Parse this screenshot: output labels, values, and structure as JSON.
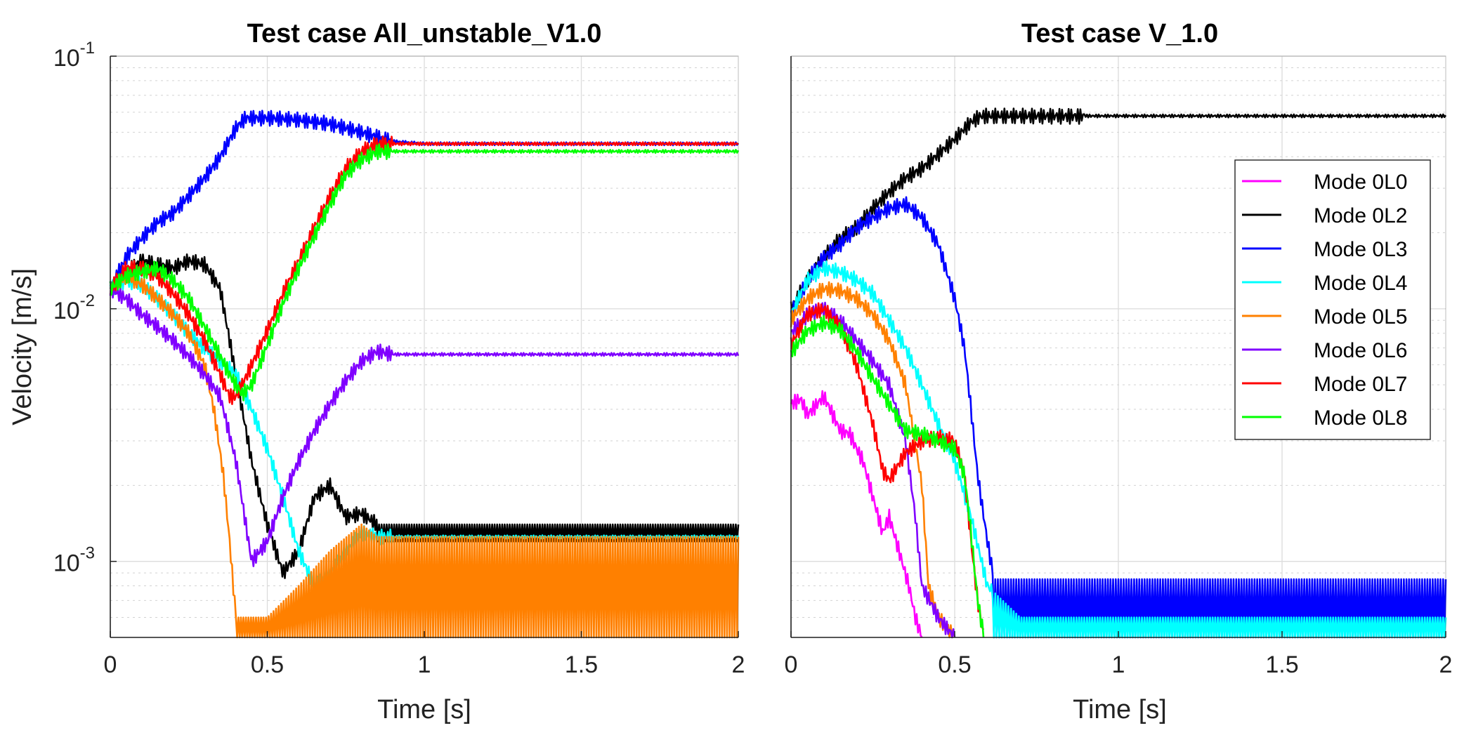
{
  "colors": {
    "Mode 0L0": "#ff00ff",
    "Mode 0L2": "#000000",
    "Mode 0L3": "#0000ff",
    "Mode 0L4": "#00ffff",
    "Mode 0L5": "#ff8000",
    "Mode 0L6": "#8000ff",
    "Mode 0L7": "#ff0000",
    "Mode 0L8": "#00ff00"
  },
  "chart_data": [
    {
      "type": "line",
      "title": "Test case All_unstable_V1.0",
      "xlabel": "Time [s]",
      "ylabel": "Velocity [m/s]",
      "xlim": [
        0,
        2
      ],
      "ylim": [
        0.0005,
        0.1
      ],
      "yscale": "log",
      "xticks": [
        "0",
        "0.5",
        "1",
        "1.5",
        "2"
      ],
      "yticks": [
        {
          "base": "10",
          "exp": "-3"
        },
        {
          "base": "10",
          "exp": "-2"
        },
        {
          "base": "10",
          "exp": "-1"
        }
      ],
      "grid": true,
      "legend": null,
      "series": [
        {
          "name": "Mode 0L2",
          "color": "#000000",
          "osc_after": 0.85,
          "osc_low": 0.0012,
          "x": [
            0,
            0.05,
            0.1,
            0.15,
            0.2,
            0.25,
            0.3,
            0.35,
            0.38,
            0.42,
            0.45,
            0.5,
            0.55,
            0.6,
            0.65,
            0.7,
            0.75,
            0.8,
            0.85,
            2.0
          ],
          "y": [
            0.012,
            0.014,
            0.0155,
            0.015,
            0.0145,
            0.0155,
            0.015,
            0.012,
            0.0075,
            0.004,
            0.0025,
            0.0014,
            0.0009,
            0.0011,
            0.0018,
            0.002,
            0.0015,
            0.00155,
            0.0014,
            0.0014
          ]
        },
        {
          "name": "Mode 0L3",
          "color": "#0000ff",
          "x": [
            0,
            0.05,
            0.1,
            0.15,
            0.2,
            0.25,
            0.3,
            0.35,
            0.4,
            0.43,
            0.5,
            0.6,
            0.7,
            0.8,
            0.9,
            1.0,
            2.0
          ],
          "y": [
            0.012,
            0.016,
            0.019,
            0.022,
            0.024,
            0.028,
            0.033,
            0.04,
            0.052,
            0.057,
            0.057,
            0.056,
            0.054,
            0.05,
            0.046,
            0.045,
            0.045
          ]
        },
        {
          "name": "Mode 0L4",
          "color": "#00ffff",
          "x": [
            0,
            0.05,
            0.1,
            0.15,
            0.2,
            0.25,
            0.3,
            0.35,
            0.4,
            0.45,
            0.5,
            0.55,
            0.6,
            0.65,
            0.7,
            0.75,
            0.8,
            0.85,
            2.0
          ],
          "y": [
            0.012,
            0.013,
            0.0125,
            0.011,
            0.0095,
            0.008,
            0.007,
            0.0062,
            0.0055,
            0.004,
            0.0028,
            0.0018,
            0.0011,
            0.0008,
            0.0009,
            0.0011,
            0.0013,
            0.00125,
            0.00125
          ]
        },
        {
          "name": "Mode 0L5",
          "color": "#ff8000",
          "osc_after": 0.4,
          "osc_low": 0.0005,
          "x": [
            0,
            0.05,
            0.1,
            0.15,
            0.2,
            0.25,
            0.3,
            0.33,
            0.36,
            0.38,
            0.4,
            0.5,
            0.6,
            0.7,
            0.8,
            0.85,
            2.0
          ],
          "y": [
            0.012,
            0.0135,
            0.0125,
            0.011,
            0.0095,
            0.008,
            0.006,
            0.004,
            0.0022,
            0.0012,
            0.0006,
            0.0006,
            0.0008,
            0.0011,
            0.0014,
            0.00125,
            0.00125
          ]
        },
        {
          "name": "Mode 0L6",
          "color": "#8000ff",
          "x": [
            0,
            0.05,
            0.1,
            0.15,
            0.2,
            0.25,
            0.3,
            0.35,
            0.4,
            0.45,
            0.5,
            0.55,
            0.6,
            0.65,
            0.7,
            0.75,
            0.8,
            0.85,
            0.9,
            2.0
          ],
          "y": [
            0.012,
            0.011,
            0.0095,
            0.0085,
            0.0075,
            0.0065,
            0.0055,
            0.0045,
            0.0025,
            0.001,
            0.0012,
            0.0018,
            0.0025,
            0.0033,
            0.0042,
            0.0052,
            0.0062,
            0.0068,
            0.0066,
            0.0066
          ]
        },
        {
          "name": "Mode 0L7",
          "color": "#ff0000",
          "x": [
            0,
            0.05,
            0.1,
            0.15,
            0.2,
            0.25,
            0.3,
            0.35,
            0.38,
            0.4,
            0.42,
            0.45,
            0.5,
            0.55,
            0.6,
            0.65,
            0.7,
            0.75,
            0.8,
            0.85,
            0.9,
            2.0
          ],
          "y": [
            0.012,
            0.0145,
            0.0145,
            0.0135,
            0.0115,
            0.0095,
            0.0075,
            0.0055,
            0.0045,
            0.0045,
            0.005,
            0.006,
            0.0082,
            0.0115,
            0.0155,
            0.021,
            0.028,
            0.036,
            0.042,
            0.045,
            0.045,
            0.045
          ]
        },
        {
          "name": "Mode 0L8",
          "color": "#00ff00",
          "x": [
            0,
            0.05,
            0.1,
            0.15,
            0.2,
            0.25,
            0.3,
            0.35,
            0.38,
            0.4,
            0.42,
            0.45,
            0.5,
            0.55,
            0.6,
            0.65,
            0.7,
            0.75,
            0.8,
            0.85,
            0.9,
            2.0
          ],
          "y": [
            0.012,
            0.0135,
            0.014,
            0.0145,
            0.013,
            0.011,
            0.0085,
            0.0065,
            0.0055,
            0.005,
            0.0046,
            0.005,
            0.0072,
            0.0105,
            0.0145,
            0.0195,
            0.026,
            0.034,
            0.039,
            0.042,
            0.042,
            0.042
          ]
        }
      ]
    },
    {
      "type": "line",
      "title": "Test case V_1.0",
      "xlabel": "Time [s]",
      "ylabel": "",
      "xlim": [
        0,
        2
      ],
      "ylim": [
        0.0005,
        0.1
      ],
      "yscale": "log",
      "xticks": [
        "0",
        "0.5",
        "1",
        "1.5",
        "2"
      ],
      "yticks": [],
      "grid": true,
      "legend": "upper-right",
      "series": [
        {
          "name": "Mode 0L0",
          "color": "#ff00ff",
          "x": [
            0,
            0.03,
            0.05,
            0.08,
            0.1,
            0.12,
            0.15,
            0.18,
            0.2,
            0.22,
            0.25,
            0.28,
            0.3,
            0.33,
            0.36,
            0.38,
            0.4
          ],
          "y": [
            0.0042,
            0.0044,
            0.0038,
            0.0042,
            0.0045,
            0.004,
            0.0033,
            0.0032,
            0.0028,
            0.0025,
            0.0018,
            0.0013,
            0.0015,
            0.0011,
            0.0008,
            0.0006,
            0.0005
          ]
        },
        {
          "name": "Mode 0L2",
          "color": "#000000",
          "x": [
            0,
            0.05,
            0.1,
            0.15,
            0.2,
            0.25,
            0.3,
            0.35,
            0.4,
            0.45,
            0.5,
            0.55,
            0.58,
            0.6,
            2.0
          ],
          "y": [
            0.01,
            0.013,
            0.016,
            0.019,
            0.021,
            0.025,
            0.029,
            0.033,
            0.036,
            0.041,
            0.047,
            0.055,
            0.058,
            0.058,
            0.058
          ]
        },
        {
          "name": "Mode 0L3",
          "color": "#0000ff",
          "osc_after": 0.62,
          "osc_low": 0.0005,
          "x": [
            0,
            0.05,
            0.1,
            0.15,
            0.2,
            0.25,
            0.3,
            0.35,
            0.4,
            0.45,
            0.5,
            0.53,
            0.55,
            0.57,
            0.6,
            0.62,
            2.0
          ],
          "y": [
            0.0095,
            0.013,
            0.016,
            0.018,
            0.021,
            0.023,
            0.025,
            0.026,
            0.023,
            0.018,
            0.011,
            0.007,
            0.004,
            0.0022,
            0.0012,
            0.00085,
            0.00085
          ]
        },
        {
          "name": "Mode 0L4",
          "color": "#00ffff",
          "osc_after": 0.62,
          "osc_low": 0.0005,
          "x": [
            0,
            0.05,
            0.1,
            0.15,
            0.2,
            0.25,
            0.3,
            0.35,
            0.4,
            0.45,
            0.5,
            0.55,
            0.6,
            0.7,
            2.0
          ],
          "y": [
            0.0095,
            0.013,
            0.0145,
            0.014,
            0.013,
            0.0115,
            0.009,
            0.007,
            0.005,
            0.0035,
            0.0025,
            0.0015,
            0.0008,
            0.0006,
            0.0006
          ]
        },
        {
          "name": "Mode 0L5",
          "color": "#ff8000",
          "x": [
            0,
            0.05,
            0.1,
            0.15,
            0.2,
            0.25,
            0.3,
            0.35,
            0.4,
            0.42,
            0.45,
            0.5
          ],
          "y": [
            0.009,
            0.011,
            0.012,
            0.0118,
            0.011,
            0.0095,
            0.0075,
            0.005,
            0.002,
            0.0008,
            0.0006,
            0.0005
          ]
        },
        {
          "name": "Mode 0L6",
          "color": "#8000ff",
          "x": [
            0,
            0.05,
            0.1,
            0.15,
            0.2,
            0.25,
            0.3,
            0.35,
            0.38,
            0.4,
            0.45,
            0.5
          ],
          "y": [
            0.008,
            0.0095,
            0.01,
            0.009,
            0.0075,
            0.0062,
            0.005,
            0.003,
            0.0015,
            0.0008,
            0.0006,
            0.0005
          ]
        },
        {
          "name": "Mode 0L7",
          "color": "#ff0000",
          "x": [
            0,
            0.05,
            0.1,
            0.15,
            0.2,
            0.25,
            0.28,
            0.3,
            0.35,
            0.4,
            0.45,
            0.5,
            0.53,
            0.55,
            0.57,
            0.59
          ],
          "y": [
            0.0072,
            0.0095,
            0.01,
            0.0085,
            0.006,
            0.0035,
            0.0023,
            0.0021,
            0.0027,
            0.003,
            0.0031,
            0.003,
            0.0022,
            0.0012,
            0.0007,
            0.0005
          ]
        },
        {
          "name": "Mode 0L8",
          "color": "#00ff00",
          "x": [
            0,
            0.05,
            0.1,
            0.15,
            0.2,
            0.25,
            0.3,
            0.35,
            0.4,
            0.45,
            0.5,
            0.53,
            0.55,
            0.57,
            0.59
          ],
          "y": [
            0.0067,
            0.0082,
            0.0088,
            0.0083,
            0.0068,
            0.0053,
            0.0042,
            0.0033,
            0.0032,
            0.003,
            0.0028,
            0.0022,
            0.0013,
            0.0007,
            0.0005
          ]
        }
      ]
    }
  ]
}
